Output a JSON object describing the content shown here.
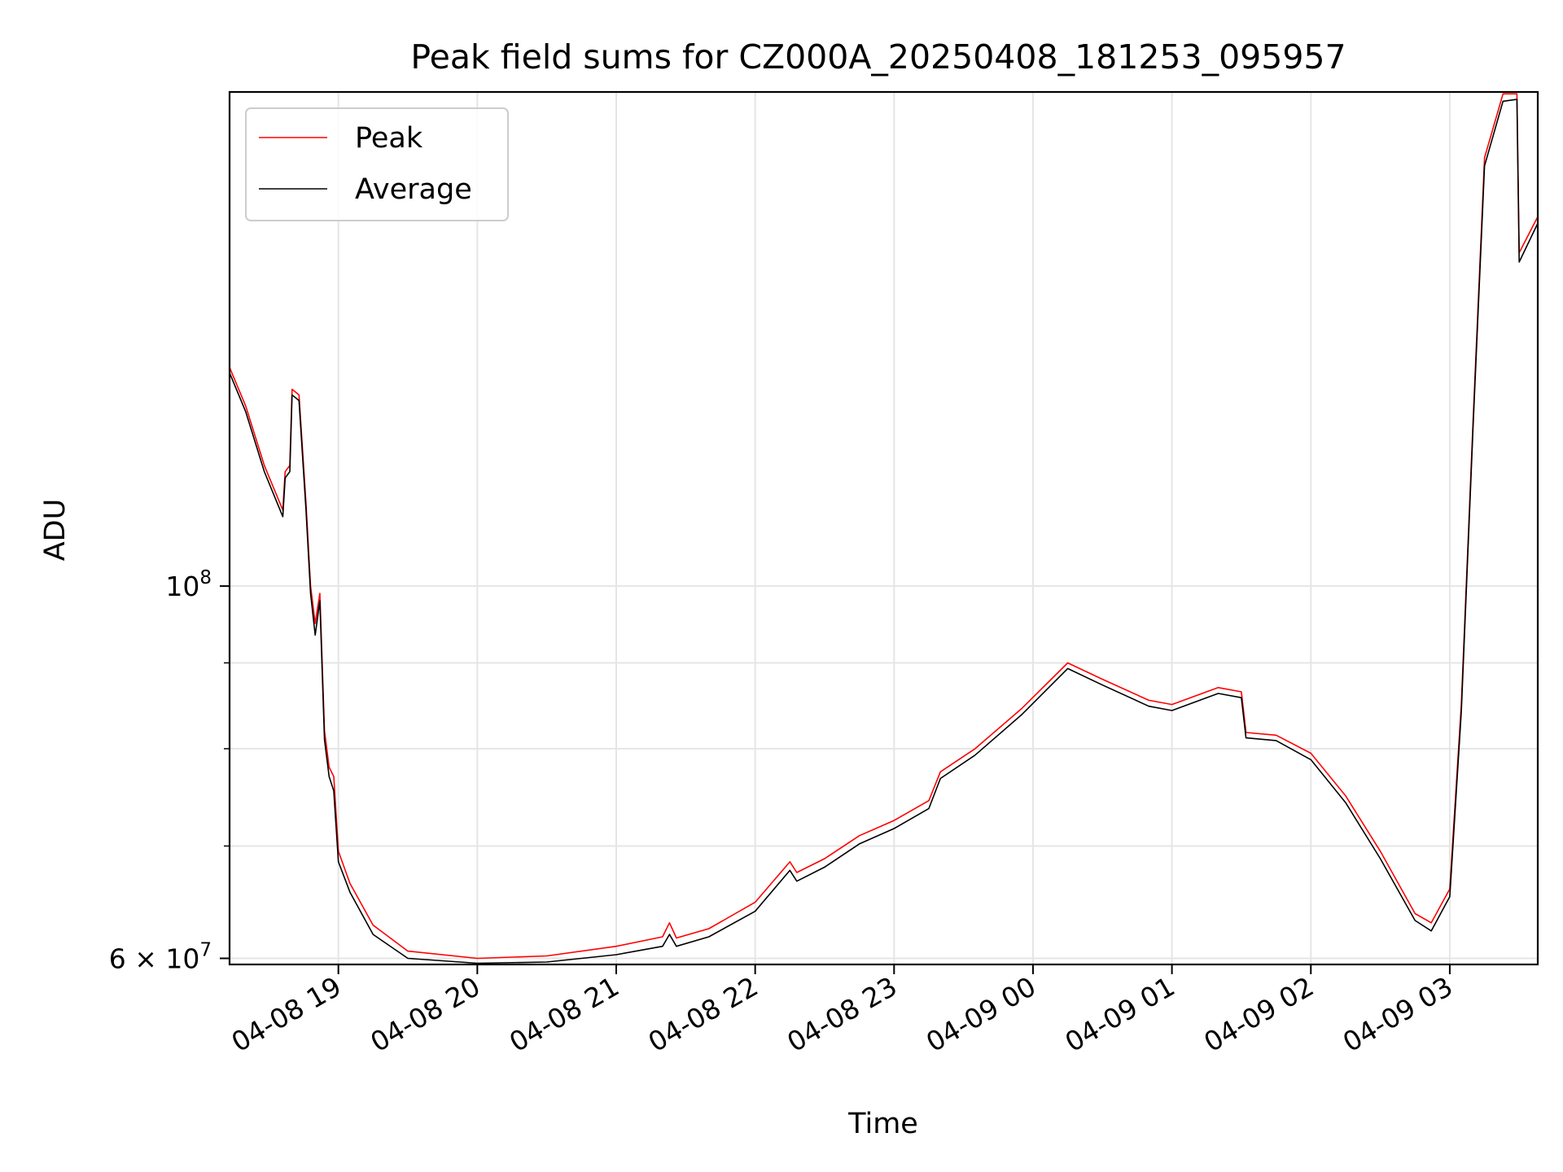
{
  "chart_data": {
    "type": "line",
    "title": "Peak field sums for CZ000A_20250408_181253_095957",
    "xlabel": "Time",
    "ylabel": "ADU",
    "yscale": "log",
    "grid": true,
    "legend_position": "top-left",
    "xlim": [
      "2025-04-08 18:13",
      "2025-04-09 03:38"
    ],
    "ylim": [
      59500000,
      197000000
    ],
    "x_ticks": [
      {
        "value": "2025-04-08 19:00",
        "label": "04-08 19"
      },
      {
        "value": "2025-04-08 20:00",
        "label": "04-08 20"
      },
      {
        "value": "2025-04-08 21:00",
        "label": "04-08 21"
      },
      {
        "value": "2025-04-08 22:00",
        "label": "04-08 22"
      },
      {
        "value": "2025-04-08 23:00",
        "label": "04-08 23"
      },
      {
        "value": "2025-04-09 00:00",
        "label": "04-09 00"
      },
      {
        "value": "2025-04-09 01:00",
        "label": "04-09 01"
      },
      {
        "value": "2025-04-09 02:00",
        "label": "04-09 02"
      },
      {
        "value": "2025-04-09 03:00",
        "label": "04-09 03"
      }
    ],
    "y_ticks": [
      {
        "value": 60000000,
        "base": "6 × 10",
        "exp": "7"
      },
      {
        "value": 100000000,
        "base": "10",
        "exp": "8"
      }
    ],
    "y_minor_ticks": [
      70000000,
      80000000,
      90000000
    ],
    "series": [
      {
        "name": "Peak",
        "color": "#ff0000",
        "points": [
          [
            "2025-04-08 18:13",
            135000000
          ],
          [
            "2025-04-08 18:20",
            128000000
          ],
          [
            "2025-04-08 18:28",
            118000000
          ],
          [
            "2025-04-08 18:36",
            111000000
          ],
          [
            "2025-04-08 18:37",
            117000000
          ],
          [
            "2025-04-08 18:39",
            118000000
          ],
          [
            "2025-04-08 18:40",
            131000000
          ],
          [
            "2025-04-08 18:43",
            130000000
          ],
          [
            "2025-04-08 18:46",
            112000000
          ],
          [
            "2025-04-08 18:48",
            100000000
          ],
          [
            "2025-04-08 18:50",
            95000000
          ],
          [
            "2025-04-08 18:52",
            99000000
          ],
          [
            "2025-04-08 18:54",
            82000000
          ],
          [
            "2025-04-08 18:56",
            78000000
          ],
          [
            "2025-04-08 18:58",
            77000000
          ],
          [
            "2025-04-08 19:00",
            69500000
          ],
          [
            "2025-04-08 19:05",
            66500000
          ],
          [
            "2025-04-08 19:15",
            62800000
          ],
          [
            "2025-04-08 19:30",
            60600000
          ],
          [
            "2025-04-08 20:00",
            60000000
          ],
          [
            "2025-04-08 20:30",
            60200000
          ],
          [
            "2025-04-08 21:00",
            61000000
          ],
          [
            "2025-04-08 21:20",
            61800000
          ],
          [
            "2025-04-08 21:23",
            63000000
          ],
          [
            "2025-04-08 21:26",
            61700000
          ],
          [
            "2025-04-08 21:40",
            62500000
          ],
          [
            "2025-04-08 22:00",
            64800000
          ],
          [
            "2025-04-08 22:15",
            68500000
          ],
          [
            "2025-04-08 22:18",
            67500000
          ],
          [
            "2025-04-08 22:30",
            68800000
          ],
          [
            "2025-04-08 22:45",
            71000000
          ],
          [
            "2025-04-08 23:00",
            72500000
          ],
          [
            "2025-04-08 23:15",
            74500000
          ],
          [
            "2025-04-08 23:20",
            77500000
          ],
          [
            "2025-04-08 23:35",
            80000000
          ],
          [
            "2025-04-08 23:55",
            84500000
          ],
          [
            "2025-04-09 00:15",
            90000000
          ],
          [
            "2025-04-09 00:30",
            88000000
          ],
          [
            "2025-04-09 00:50",
            85500000
          ],
          [
            "2025-04-09 01:00",
            85000000
          ],
          [
            "2025-04-09 01:20",
            87000000
          ],
          [
            "2025-04-09 01:30",
            86500000
          ],
          [
            "2025-04-09 01:32",
            81800000
          ],
          [
            "2025-04-09 01:45",
            81500000
          ],
          [
            "2025-04-09 02:00",
            79500000
          ],
          [
            "2025-04-09 02:15",
            75000000
          ],
          [
            "2025-04-09 02:30",
            69500000
          ],
          [
            "2025-04-09 02:45",
            63800000
          ],
          [
            "2025-04-09 02:52",
            63000000
          ],
          [
            "2025-04-09 03:00",
            66000000
          ],
          [
            "2025-04-09 03:05",
            85000000
          ],
          [
            "2025-04-09 03:10",
            125000000
          ],
          [
            "2025-04-09 03:15",
            180000000
          ],
          [
            "2025-04-09 03:23",
            196500000
          ],
          [
            "2025-04-09 03:29",
            196500000
          ],
          [
            "2025-04-09 03:30",
            158000000
          ],
          [
            "2025-04-09 03:38",
            166000000
          ]
        ]
      },
      {
        "name": "Average",
        "color": "#000000",
        "points": [
          [
            "2025-04-08 18:13",
            134000000
          ],
          [
            "2025-04-08 18:20",
            127000000
          ],
          [
            "2025-04-08 18:28",
            117000000
          ],
          [
            "2025-04-08 18:36",
            110000000
          ],
          [
            "2025-04-08 18:37",
            116000000
          ],
          [
            "2025-04-08 18:39",
            117000000
          ],
          [
            "2025-04-08 18:40",
            130000000
          ],
          [
            "2025-04-08 18:43",
            129000000
          ],
          [
            "2025-04-08 18:46",
            111000000
          ],
          [
            "2025-04-08 18:48",
            99000000
          ],
          [
            "2025-04-08 18:50",
            93500000
          ],
          [
            "2025-04-08 18:52",
            98000000
          ],
          [
            "2025-04-08 18:54",
            81000000
          ],
          [
            "2025-04-08 18:56",
            77000000
          ],
          [
            "2025-04-08 18:58",
            75500000
          ],
          [
            "2025-04-08 19:00",
            68500000
          ],
          [
            "2025-04-08 19:05",
            65700000
          ],
          [
            "2025-04-08 19:15",
            62000000
          ],
          [
            "2025-04-08 19:30",
            60000000
          ],
          [
            "2025-04-08 20:00",
            59600000
          ],
          [
            "2025-04-08 20:30",
            59700000
          ],
          [
            "2025-04-08 21:00",
            60300000
          ],
          [
            "2025-04-08 21:20",
            61000000
          ],
          [
            "2025-04-08 21:23",
            62000000
          ],
          [
            "2025-04-08 21:26",
            61000000
          ],
          [
            "2025-04-08 21:40",
            61800000
          ],
          [
            "2025-04-08 22:00",
            64000000
          ],
          [
            "2025-04-08 22:15",
            67700000
          ],
          [
            "2025-04-08 22:18",
            66700000
          ],
          [
            "2025-04-08 22:30",
            68000000
          ],
          [
            "2025-04-08 22:45",
            70200000
          ],
          [
            "2025-04-08 23:00",
            71700000
          ],
          [
            "2025-04-08 23:15",
            73700000
          ],
          [
            "2025-04-08 23:20",
            76800000
          ],
          [
            "2025-04-08 23:35",
            79300000
          ],
          [
            "2025-04-08 23:55",
            83800000
          ],
          [
            "2025-04-09 00:15",
            89300000
          ],
          [
            "2025-04-09 00:30",
            87300000
          ],
          [
            "2025-04-09 00:50",
            84800000
          ],
          [
            "2025-04-09 01:00",
            84300000
          ],
          [
            "2025-04-09 01:20",
            86300000
          ],
          [
            "2025-04-09 01:30",
            85800000
          ],
          [
            "2025-04-09 01:32",
            81200000
          ],
          [
            "2025-04-09 01:45",
            80900000
          ],
          [
            "2025-04-09 02:00",
            78800000
          ],
          [
            "2025-04-09 02:15",
            74300000
          ],
          [
            "2025-04-09 02:30",
            68800000
          ],
          [
            "2025-04-09 02:45",
            63200000
          ],
          [
            "2025-04-09 02:52",
            62300000
          ],
          [
            "2025-04-09 03:00",
            65300000
          ],
          [
            "2025-04-09 03:05",
            84200000
          ],
          [
            "2025-04-09 03:10",
            124000000
          ],
          [
            "2025-04-09 03:15",
            178000000
          ],
          [
            "2025-04-09 03:23",
            194500000
          ],
          [
            "2025-04-09 03:29",
            195000000
          ],
          [
            "2025-04-09 03:30",
            156000000
          ],
          [
            "2025-04-09 03:38",
            164500000
          ]
        ]
      }
    ]
  }
}
